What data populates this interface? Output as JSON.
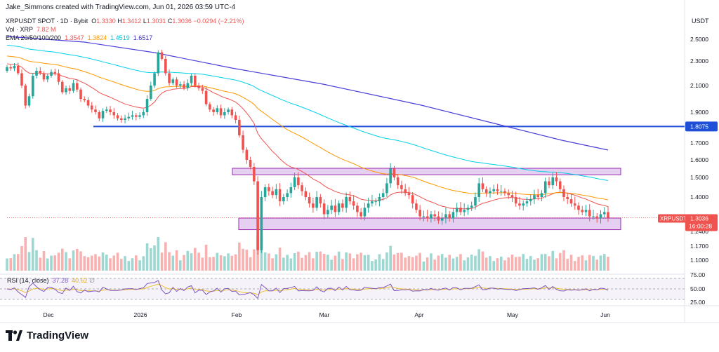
{
  "header": {
    "credit": "Jake_Simmons created with TradingView.com, Jun 01, 2026 03:59 UTC-4",
    "symbol": "XRPUSDT SPOT · 1D · Bybit",
    "o_label": "O",
    "o": "1.3330",
    "h_label": "H",
    "h": "1.3412",
    "l_label": "L",
    "l": "1.3031",
    "c_label": "C",
    "c": "1.3036",
    "change": "−0.0294 (−2.21%)",
    "vol_label": "Vol · XRP",
    "vol": "7.82 M",
    "ema_label": "EMA 20/50/100/200",
    "ema20": "1.3547",
    "ema50": "1.3824",
    "ema100": "1.4519",
    "ema200": "1.6517"
  },
  "colors": {
    "up": "#26a69a",
    "down": "#ef5350",
    "ema20": "#ef5350",
    "ema50": "#ff9800",
    "ema100": "#00d0e8",
    "ema200": "#4b3fd8",
    "support": "#1e4fd6",
    "zone_fill": "#e1c8ef",
    "zone_stroke": "#9c27b0",
    "rsi": "#7e57c2",
    "rsi_ma": "#f0c030"
  },
  "price_axis": {
    "currency": "USDT",
    "ticks": [
      "2.5000",
      "2.3000",
      "2.1000",
      "1.9000",
      "1.7000",
      "1.6000",
      "1.5000",
      "1.4000",
      "1.2400",
      "1.1700",
      "1.1000"
    ],
    "support_label": "1.8075",
    "last_symbol": "XRPUSDT",
    "last_price": "1.3036",
    "countdown": "16:00:28"
  },
  "rsi": {
    "label": "RSI (14, close)",
    "value": "37.28",
    "ma_value": "40.62",
    "ticks": [
      "75.00",
      "50.00",
      "25.00"
    ]
  },
  "time_axis": [
    "Dec",
    "2026",
    "Feb",
    "Mar",
    "Apr",
    "May",
    "Jun"
  ],
  "branding": {
    "logo_text": "TradingView"
  },
  "chart_data": {
    "type": "candlestick",
    "title": "XRPUSDT SPOT · 1D · Bybit",
    "y_unit": "USDT",
    "support_level": 1.8075,
    "range_zones": [
      {
        "low": 1.515,
        "high": 1.552
      },
      {
        "low": 1.248,
        "high": 1.302
      }
    ],
    "x_range": [
      "2025-11-13",
      "2026-05-31"
    ],
    "price_close": [
      2.25,
      2.24,
      2.26,
      2.2,
      2.1,
      1.95,
      2.02,
      2.18,
      2.22,
      2.2,
      2.15,
      2.18,
      2.21,
      2.2,
      2.13,
      2.05,
      2.08,
      2.06,
      2.12,
      2.07,
      2.0,
      1.99,
      1.95,
      1.92,
      1.9,
      1.86,
      1.91,
      1.92,
      1.9,
      1.88,
      1.86,
      1.85,
      1.86,
      1.87,
      1.88,
      1.87,
      1.88,
      1.9,
      2.0,
      2.1,
      2.2,
      2.38,
      2.32,
      2.2,
      2.12,
      2.15,
      2.1,
      2.11,
      2.08,
      2.12,
      2.18,
      2.1,
      2.08,
      2.06,
      1.96,
      1.92,
      1.9,
      1.93,
      1.88,
      1.9,
      1.92,
      1.88,
      1.85,
      1.75,
      1.66,
      1.6,
      1.56,
      1.48,
      1.15,
      1.4,
      1.45,
      1.43,
      1.41,
      1.44,
      1.38,
      1.4,
      1.42,
      1.45,
      1.5,
      1.46,
      1.43,
      1.4,
      1.37,
      1.35,
      1.4,
      1.37,
      1.32,
      1.34,
      1.36,
      1.33,
      1.37,
      1.35,
      1.4,
      1.38,
      1.36,
      1.33,
      1.31,
      1.35,
      1.37,
      1.38,
      1.38,
      1.4,
      1.42,
      1.47,
      1.55,
      1.5,
      1.46,
      1.44,
      1.42,
      1.41,
      1.37,
      1.34,
      1.31,
      1.31,
      1.3,
      1.32,
      1.31,
      1.29,
      1.3,
      1.32,
      1.3,
      1.33,
      1.35,
      1.33,
      1.34,
      1.35,
      1.36,
      1.4,
      1.47,
      1.44,
      1.42,
      1.43,
      1.44,
      1.43,
      1.43,
      1.42,
      1.41,
      1.4,
      1.37,
      1.36,
      1.37,
      1.38,
      1.39,
      1.41,
      1.4,
      1.42,
      1.48,
      1.46,
      1.5,
      1.48,
      1.44,
      1.4,
      1.39,
      1.37,
      1.36,
      1.34,
      1.33,
      1.34,
      1.31,
      1.31,
      1.3,
      1.32,
      1.33,
      1.3036
    ],
    "ema": {
      "ema20": 1.3547,
      "ema50": 1.3824,
      "ema100": 1.4519,
      "ema200": 1.6517
    },
    "volume_last": "7.82 M",
    "rsi_last": 37.28,
    "rsi_ma_last": 40.62,
    "rsi_levels": [
      75,
      50,
      25
    ]
  }
}
